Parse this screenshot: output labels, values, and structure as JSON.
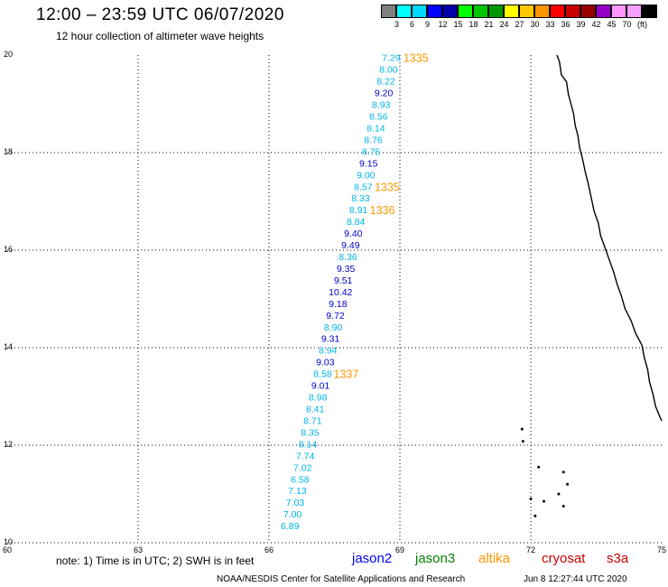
{
  "title": "12:00 – 23:59 UTC 06/07/2020",
  "subtitle": "12 hour collection of altimeter wave heights",
  "legend": {
    "colors": [
      "#7f7f7f",
      "#00ffff",
      "#00d7ff",
      "#0000ff",
      "#0000aa",
      "#00ff00",
      "#00c800",
      "#009600",
      "#ffff00",
      "#ffc800",
      "#ff9600",
      "#ff0000",
      "#c80000",
      "#960000",
      "#9600c8",
      "#ff96ff",
      "#f5a0ff",
      "#000000"
    ],
    "labels": [
      "3",
      "6",
      "9",
      "12",
      "15",
      "18",
      "21",
      "24",
      "27",
      "30",
      "33",
      "36",
      "39",
      "42",
      "45",
      "70",
      "(ft)"
    ]
  },
  "note": "note: 1) Time is in UTC; 2) SWH is in feet",
  "satellites": [
    {
      "name": "jason2",
      "color": "#0000ff"
    },
    {
      "name": "jason3",
      "color": "#008000"
    },
    {
      "name": "altika",
      "color": "#ff9600"
    },
    {
      "name": "cryosat",
      "color": "#c80000"
    },
    {
      "name": "s3a",
      "color": "#c80000"
    }
  ],
  "footer": {
    "left": "NOAA/NESDIS Center for Satellite Applications and Research",
    "right": "Jun  8 12:27:44 UTC 2020"
  },
  "chart_data": {
    "type": "scatter",
    "xlim": [
      60,
      75
    ],
    "ylim": [
      10,
      20
    ],
    "x_ticks": [
      "60",
      "63",
      "66",
      "69",
      "72",
      "75"
    ],
    "y_ticks": [
      "10",
      "12",
      "14",
      "16",
      "18",
      "20"
    ],
    "grid": true,
    "points": [
      {
        "x": 68.8,
        "y": 19.95,
        "v": "7.29",
        "c": "#00b4e6"
      },
      {
        "x": 68.74,
        "y": 19.71,
        "v": "8.00",
        "c": "#00b4e6"
      },
      {
        "x": 68.68,
        "y": 19.47,
        "v": "8.22",
        "c": "#00b4e6"
      },
      {
        "x": 68.63,
        "y": 19.23,
        "v": "9.20",
        "c": "#0000c8"
      },
      {
        "x": 68.57,
        "y": 18.99,
        "v": "8.93",
        "c": "#00b4e6"
      },
      {
        "x": 68.51,
        "y": 18.75,
        "v": "8.56",
        "c": "#00b4e6"
      },
      {
        "x": 68.45,
        "y": 18.51,
        "v": "8.14",
        "c": "#00b4e6"
      },
      {
        "x": 68.39,
        "y": 18.27,
        "v": "8.76",
        "c": "#00b4e6"
      },
      {
        "x": 68.34,
        "y": 18.03,
        "v": "8.75",
        "c": "#00b4e6"
      },
      {
        "x": 68.28,
        "y": 17.79,
        "v": "9.15",
        "c": "#0000c8"
      },
      {
        "x": 68.22,
        "y": 17.55,
        "v": "9.00",
        "c": "#00b4e6"
      },
      {
        "x": 68.16,
        "y": 17.31,
        "v": "8.57",
        "c": "#00b4e6"
      },
      {
        "x": 68.1,
        "y": 17.07,
        "v": "8.33",
        "c": "#00b4e6"
      },
      {
        "x": 68.05,
        "y": 16.83,
        "v": "8.91",
        "c": "#00b4e6"
      },
      {
        "x": 67.99,
        "y": 16.59,
        "v": "8.84",
        "c": "#00b4e6"
      },
      {
        "x": 67.93,
        "y": 16.35,
        "v": "9.40",
        "c": "#0000c8"
      },
      {
        "x": 67.87,
        "y": 16.11,
        "v": "9.49",
        "c": "#0000c8"
      },
      {
        "x": 67.81,
        "y": 15.87,
        "v": "8.36",
        "c": "#00b4e6"
      },
      {
        "x": 67.76,
        "y": 15.63,
        "v": "9.35",
        "c": "#0000c8"
      },
      {
        "x": 67.7,
        "y": 15.39,
        "v": "9.51",
        "c": "#0000c8"
      },
      {
        "x": 67.64,
        "y": 15.15,
        "v": "10.42",
        "c": "#0000c8"
      },
      {
        "x": 67.58,
        "y": 14.91,
        "v": "9.18",
        "c": "#0000c8"
      },
      {
        "x": 67.52,
        "y": 14.67,
        "v": "9.72",
        "c": "#0000c8"
      },
      {
        "x": 67.47,
        "y": 14.43,
        "v": "8.90",
        "c": "#00b4e6"
      },
      {
        "x": 67.41,
        "y": 14.19,
        "v": "9.31",
        "c": "#0000c8"
      },
      {
        "x": 67.35,
        "y": 13.95,
        "v": "8.94",
        "c": "#00b4e6"
      },
      {
        "x": 67.29,
        "y": 13.71,
        "v": "9.03",
        "c": "#0000c8"
      },
      {
        "x": 67.23,
        "y": 13.47,
        "v": "8.58",
        "c": "#00b4e6"
      },
      {
        "x": 67.18,
        "y": 13.23,
        "v": "9.01",
        "c": "#0000c8"
      },
      {
        "x": 67.12,
        "y": 12.99,
        "v": "8.98",
        "c": "#00b4e6"
      },
      {
        "x": 67.06,
        "y": 12.75,
        "v": "8.41",
        "c": "#00b4e6"
      },
      {
        "x": 67.0,
        "y": 12.51,
        "v": "8.71",
        "c": "#00b4e6"
      },
      {
        "x": 66.94,
        "y": 12.27,
        "v": "8.35",
        "c": "#00b4e6"
      },
      {
        "x": 66.89,
        "y": 12.03,
        "v": "8.14",
        "c": "#00b4e6"
      },
      {
        "x": 66.83,
        "y": 11.79,
        "v": "7.74",
        "c": "#00b4e6"
      },
      {
        "x": 66.77,
        "y": 11.55,
        "v": "7.02",
        "c": "#00b4e6"
      },
      {
        "x": 66.71,
        "y": 11.31,
        "v": "6.58",
        "c": "#00b4e6"
      },
      {
        "x": 66.65,
        "y": 11.07,
        "v": "7.13",
        "c": "#00b4e6"
      },
      {
        "x": 66.6,
        "y": 10.83,
        "v": "7.03",
        "c": "#00b4e6"
      },
      {
        "x": 66.54,
        "y": 10.59,
        "v": "7.00",
        "c": "#00b4e6"
      },
      {
        "x": 66.48,
        "y": 10.35,
        "v": "6.89",
        "c": "#00b4e6"
      }
    ],
    "time_labels": [
      {
        "x": 69.08,
        "y": 19.95,
        "t": "1335"
      },
      {
        "x": 68.42,
        "y": 17.31,
        "t": "1335"
      },
      {
        "x": 68.31,
        "y": 16.83,
        "t": "1336"
      },
      {
        "x": 67.48,
        "y": 13.47,
        "t": "1337"
      }
    ],
    "coastline": [
      [
        72.6,
        20.0
      ],
      [
        72.66,
        19.85
      ],
      [
        72.7,
        19.6
      ],
      [
        72.82,
        19.45
      ],
      [
        72.86,
        19.2
      ],
      [
        72.92,
        19.0
      ],
      [
        72.98,
        18.8
      ],
      [
        73.02,
        18.55
      ],
      [
        73.08,
        18.35
      ],
      [
        73.12,
        18.1
      ],
      [
        73.18,
        17.9
      ],
      [
        73.25,
        17.6
      ],
      [
        73.32,
        17.35
      ],
      [
        73.38,
        17.1
      ],
      [
        73.45,
        16.8
      ],
      [
        73.55,
        16.55
      ],
      [
        73.6,
        16.3
      ],
      [
        73.7,
        16.05
      ],
      [
        73.8,
        15.8
      ],
      [
        73.9,
        15.55
      ],
      [
        73.98,
        15.3
      ],
      [
        74.08,
        15.05
      ],
      [
        74.16,
        14.8
      ],
      [
        74.3,
        14.55
      ],
      [
        74.4,
        14.3
      ],
      [
        74.55,
        14.05
      ],
      [
        74.6,
        13.8
      ],
      [
        74.68,
        13.55
      ],
      [
        74.72,
        13.3
      ],
      [
        74.8,
        13.05
      ],
      [
        74.86,
        12.8
      ],
      [
        74.95,
        12.6
      ],
      [
        75.0,
        12.5
      ]
    ],
    "islands": [
      [
        72.84,
        11.2
      ],
      [
        72.18,
        11.55
      ],
      [
        72.75,
        11.45
      ],
      [
        72.64,
        11.0
      ],
      [
        72.0,
        10.9
      ],
      [
        72.3,
        10.85
      ],
      [
        72.1,
        10.55
      ],
      [
        72.75,
        10.75
      ],
      [
        71.8,
        12.33
      ],
      [
        71.82,
        12.08
      ]
    ]
  }
}
